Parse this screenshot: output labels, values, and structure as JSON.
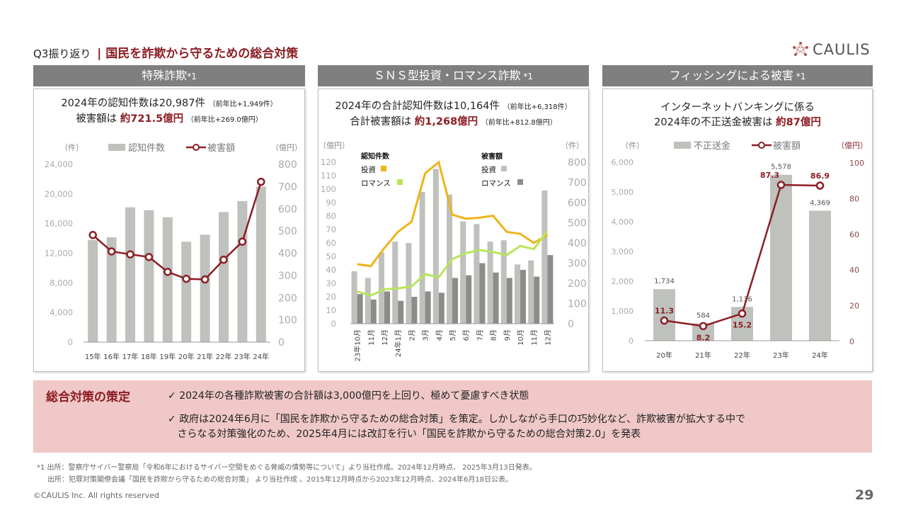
{
  "header": {
    "crumb": "Q3振り返り",
    "separator": "|",
    "title": "国民を詐欺から守るための総合対策",
    "logo": "CAULIS"
  },
  "panels": [
    {
      "heading": "特殊詐欺",
      "note": "*1",
      "line1": "2024年の認知件数は20,987件",
      "line1_note": "（前年比+1,949件）",
      "line2_pre": "被害額は ",
      "line2_red": "約721.5億円",
      "line2_note": "（前年比+269.0億円）"
    },
    {
      "heading": "ＳＮＳ型投資・ロマンス詐欺",
      "note": " *1",
      "line1": "2024年の合計認知件数は10,164件",
      "line1_note": "（前年比+6,318件）",
      "line2_pre": "合計被害額は ",
      "line2_red": "約1,268億円",
      "line2_note": "（前年比+812.8億円）"
    },
    {
      "heading": "フィッシングによる被害",
      "note": " *1",
      "line1": "インターネットバンキングに係る",
      "line2_pre": "2024年の不正送金被害は ",
      "line2_red": "約87億円"
    }
  ],
  "summary": {
    "title": "総合対策の策定",
    "check": "✓",
    "point1": "2024年の各種詐欺被害の合計額は3,000億円を上回り、極めて憂慮すべき状態",
    "point2a": "政府は2024年6月に「国民を詐欺から守るための総合対策」を策定。しかしながら手口の巧妙化など、詐欺被害が拡大する中で",
    "point2b": "さらなる対策強化のため、2025年4月には改訂を行い「国民を詐欺から守るための総合対策2.0」を発表"
  },
  "footnotes": [
    "*1 出所：警察庁サイバー警察局「令和6年におけるサイバー空間をめぐる脅威の情勢等について」より当社作成。2024年12月時点、 2025年3月13日発表。",
    "出所：犯罪対策閣僚会議「国民を詐欺から守るための総合対策」 より当社作成 。2015年12月時点から2023年12月時点、2024年6月18日公表。"
  ],
  "copyright": "©CAULIS Inc. All rights reserved",
  "page_number": "29",
  "colors": {
    "accent": "#8b1e24",
    "bar": "#bfc1bd",
    "bar_dark": "#8c8c8a",
    "orange": "#f0b31a",
    "green": "#b9e55a"
  },
  "chart_data": [
    {
      "type": "bar+line",
      "left_unit": "（件）",
      "right_unit": "（億円）",
      "legend": [
        "認知件数",
        "被害額"
      ],
      "categories": [
        "15年",
        "16年",
        "17年",
        "18年",
        "19年",
        "20年",
        "21年",
        "22年",
        "23年",
        "24年"
      ],
      "left_ticks": [
        "0",
        "4,000",
        "8,000",
        "12,000",
        "16,000",
        "20,000",
        "24,000"
      ],
      "ylim": [
        0,
        24000
      ],
      "right_ticks": [
        "0",
        "100",
        "200",
        "300",
        "400",
        "500",
        "600",
        "700",
        "800"
      ],
      "y2lim": [
        0,
        800
      ],
      "series": [
        {
          "name": "認知件数",
          "axis": "left",
          "type": "bar",
          "values": [
            13800,
            14150,
            18200,
            17800,
            16850,
            13550,
            14500,
            17550,
            19040,
            20987
          ]
        },
        {
          "name": "被害額",
          "axis": "right",
          "type": "line",
          "values": [
            482,
            408,
            395,
            383,
            316,
            285,
            282,
            371,
            452,
            721.5
          ]
        }
      ]
    },
    {
      "type": "bar+line",
      "left_unit": "（億円）",
      "right_unit": "（件）",
      "legend_groups": [
        {
          "title": "認知件数",
          "items": [
            "投資",
            "ロマンス"
          ]
        },
        {
          "title": "被害額",
          "items": [
            "投資",
            "ロマンス"
          ]
        }
      ],
      "categories": [
        "23年10月",
        "11月",
        "12月",
        "24年1月",
        "2月",
        "3月",
        "4月",
        "5月",
        "6月",
        "7月",
        "8月",
        "9月",
        "10月",
        "11月",
        "12月"
      ],
      "left_ticks": [
        "0",
        "10",
        "20",
        "30",
        "40",
        "50",
        "60",
        "70",
        "80",
        "90",
        "100",
        "110",
        "120"
      ],
      "ylim": [
        0,
        120
      ],
      "right_ticks": [
        "0",
        "100",
        "200",
        "300",
        "400",
        "500",
        "600",
        "700",
        "800"
      ],
      "y2lim": [
        0,
        800
      ],
      "series": [
        {
          "name": "被害額 投資",
          "axis": "left",
          "type": "bar",
          "values": [
            39,
            34,
            53,
            61,
            60,
            98,
            115,
            96,
            76,
            74,
            61,
            62,
            44,
            47,
            99
          ]
        },
        {
          "name": "被害額 ロマンス",
          "axis": "left",
          "type": "bar",
          "values": [
            22,
            18,
            24,
            17,
            20,
            24,
            23,
            34,
            36,
            45,
            38,
            34,
            40,
            35,
            51
          ]
        },
        {
          "name": "認知件数 投資",
          "axis": "right",
          "type": "line",
          "values": [
            295,
            285,
            375,
            455,
            505,
            745,
            800,
            540,
            520,
            525,
            535,
            455,
            445,
            400,
            440
          ]
        },
        {
          "name": "認知件数 ロマンス",
          "axis": "right",
          "type": "line",
          "values": [
            160,
            140,
            170,
            175,
            185,
            245,
            230,
            320,
            350,
            365,
            355,
            340,
            385,
            370,
            460
          ]
        }
      ]
    },
    {
      "type": "bar+line",
      "left_unit": "（件）",
      "right_unit": "（億円）",
      "legend": [
        "不正送金",
        "被害額"
      ],
      "categories": [
        "20年",
        "21年",
        "22年",
        "23年",
        "24年"
      ],
      "left_ticks": [
        "0",
        "1,000",
        "2,000",
        "3,000",
        "4,000",
        "5,000",
        "6,000"
      ],
      "ylim": [
        0,
        6000
      ],
      "right_ticks": [
        "0",
        "20",
        "40",
        "60",
        "80",
        "100"
      ],
      "y2lim": [
        0,
        100
      ],
      "series": [
        {
          "name": "不正送金",
          "axis": "left",
          "type": "bar",
          "values": [
            1734,
            584,
            1136,
            5578,
            4369
          ],
          "labels": [
            "1,734",
            "584",
            "1,136",
            "5,578",
            "4,369"
          ]
        },
        {
          "name": "被害額",
          "axis": "right",
          "type": "line",
          "values": [
            11.3,
            8.2,
            15.2,
            87.3,
            86.9
          ],
          "labels": [
            "11.3",
            "8.2",
            "15.2",
            "87.3",
            "86.9"
          ]
        }
      ]
    }
  ]
}
